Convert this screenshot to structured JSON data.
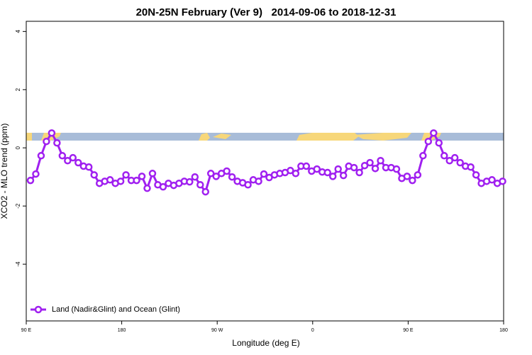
{
  "chart_data": {
    "type": "line",
    "title": "20N-25N February (Ver 9)   2014-09-06 to 2018-12-31",
    "xlabel": "Longitude (deg E)",
    "ylabel": "XCO2 - MLO trend (ppm)",
    "xlim": [
      90,
      540
    ],
    "ylim": [
      -5.95,
      4.35
    ],
    "xticks": [
      {
        "value": 90,
        "label": "90 E"
      },
      {
        "value": 180,
        "label": "180"
      },
      {
        "value": 270,
        "label": "90 W"
      },
      {
        "value": 360,
        "label": "0"
      },
      {
        "value": 450,
        "label": "90 E"
      },
      {
        "value": 540,
        "label": "180"
      }
    ],
    "yticks": [
      -4,
      -2,
      0,
      2,
      4
    ],
    "legend_position": "bottom-left",
    "x": [
      94,
      99,
      104,
      109,
      114,
      119,
      124,
      129,
      134,
      139,
      144,
      149,
      154,
      159,
      164,
      169,
      174,
      179,
      184,
      189,
      194,
      199,
      204,
      209,
      214,
      219,
      224,
      229,
      234,
      239,
      244,
      249,
      254,
      259,
      264,
      269,
      274,
      279,
      284,
      289,
      294,
      299,
      304,
      309,
      314,
      319,
      324,
      329,
      334,
      339,
      344,
      349,
      354,
      359,
      364,
      369,
      374,
      379,
      384,
      389,
      394,
      399,
      404,
      409,
      414,
      419,
      424,
      429,
      434,
      439,
      444,
      449,
      454,
      459,
      464,
      469,
      474,
      479,
      484,
      489,
      494,
      499,
      504,
      509,
      514,
      519,
      524,
      529,
      534,
      539
    ],
    "series": [
      {
        "name": "Land (Nadir&Glint) and Ocean (Glint)",
        "color": "#a020f0",
        "values": [
          -1.12,
          -0.9,
          -0.27,
          0.22,
          0.51,
          0.17,
          -0.27,
          -0.44,
          -0.34,
          -0.51,
          -0.63,
          -0.66,
          -0.93,
          -1.22,
          -1.15,
          -1.1,
          -1.22,
          -1.15,
          -0.93,
          -1.12,
          -1.12,
          -0.98,
          -1.39,
          -0.88,
          -1.27,
          -1.34,
          -1.22,
          -1.29,
          -1.22,
          -1.15,
          -1.17,
          -1.0,
          -1.27,
          -1.51,
          -0.88,
          -0.98,
          -0.88,
          -0.8,
          -1.0,
          -1.15,
          -1.2,
          -1.27,
          -1.1,
          -1.15,
          -0.9,
          -1.02,
          -0.93,
          -0.88,
          -0.85,
          -0.78,
          -0.88,
          -0.63,
          -0.63,
          -0.8,
          -0.73,
          -0.83,
          -0.85,
          -0.98,
          -0.73,
          -0.95,
          -0.63,
          -0.68,
          -0.85,
          -0.61,
          -0.51,
          -0.71,
          -0.44,
          -0.68,
          -0.68,
          -0.73,
          -1.05,
          -0.98,
          -1.12,
          -0.93,
          -0.27,
          0.22,
          0.51,
          0.17,
          -0.27,
          -0.44,
          -0.34,
          -0.51,
          -0.63,
          -0.66,
          -0.93,
          -1.22,
          -1.15,
          -1.1,
          -1.22,
          -1.15
        ]
      }
    ]
  }
}
